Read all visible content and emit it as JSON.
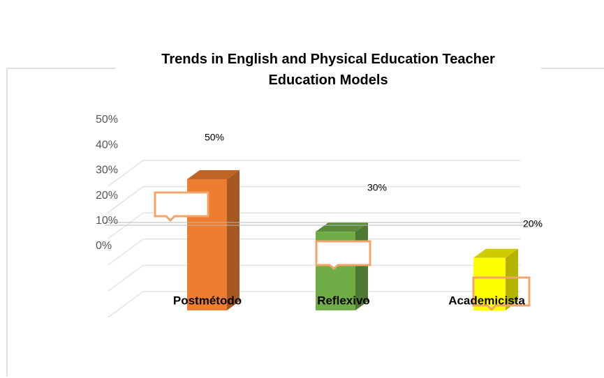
{
  "chart_data": {
    "type": "bar",
    "title": "Trends in English and Physical Education Teacher Education Models",
    "categories": [
      "Postmétodo",
      "Reflexivo",
      "Academicista"
    ],
    "values": [
      50,
      30,
      20
    ],
    "value_labels": [
      "50%",
      "30%",
      "20%"
    ],
    "colors": [
      "#ED7D31",
      "#70AD47",
      "#FFFF00"
    ],
    "ylim": [
      0,
      50
    ],
    "yticks": [
      {
        "value": 0,
        "label": "0%"
      },
      {
        "value": 10,
        "label": "10%"
      },
      {
        "value": 20,
        "label": "20%"
      },
      {
        "value": 30,
        "label": "30%"
      },
      {
        "value": 40,
        "label": "40%"
      },
      {
        "value": 50,
        "label": "50%"
      }
    ],
    "grid": true
  }
}
